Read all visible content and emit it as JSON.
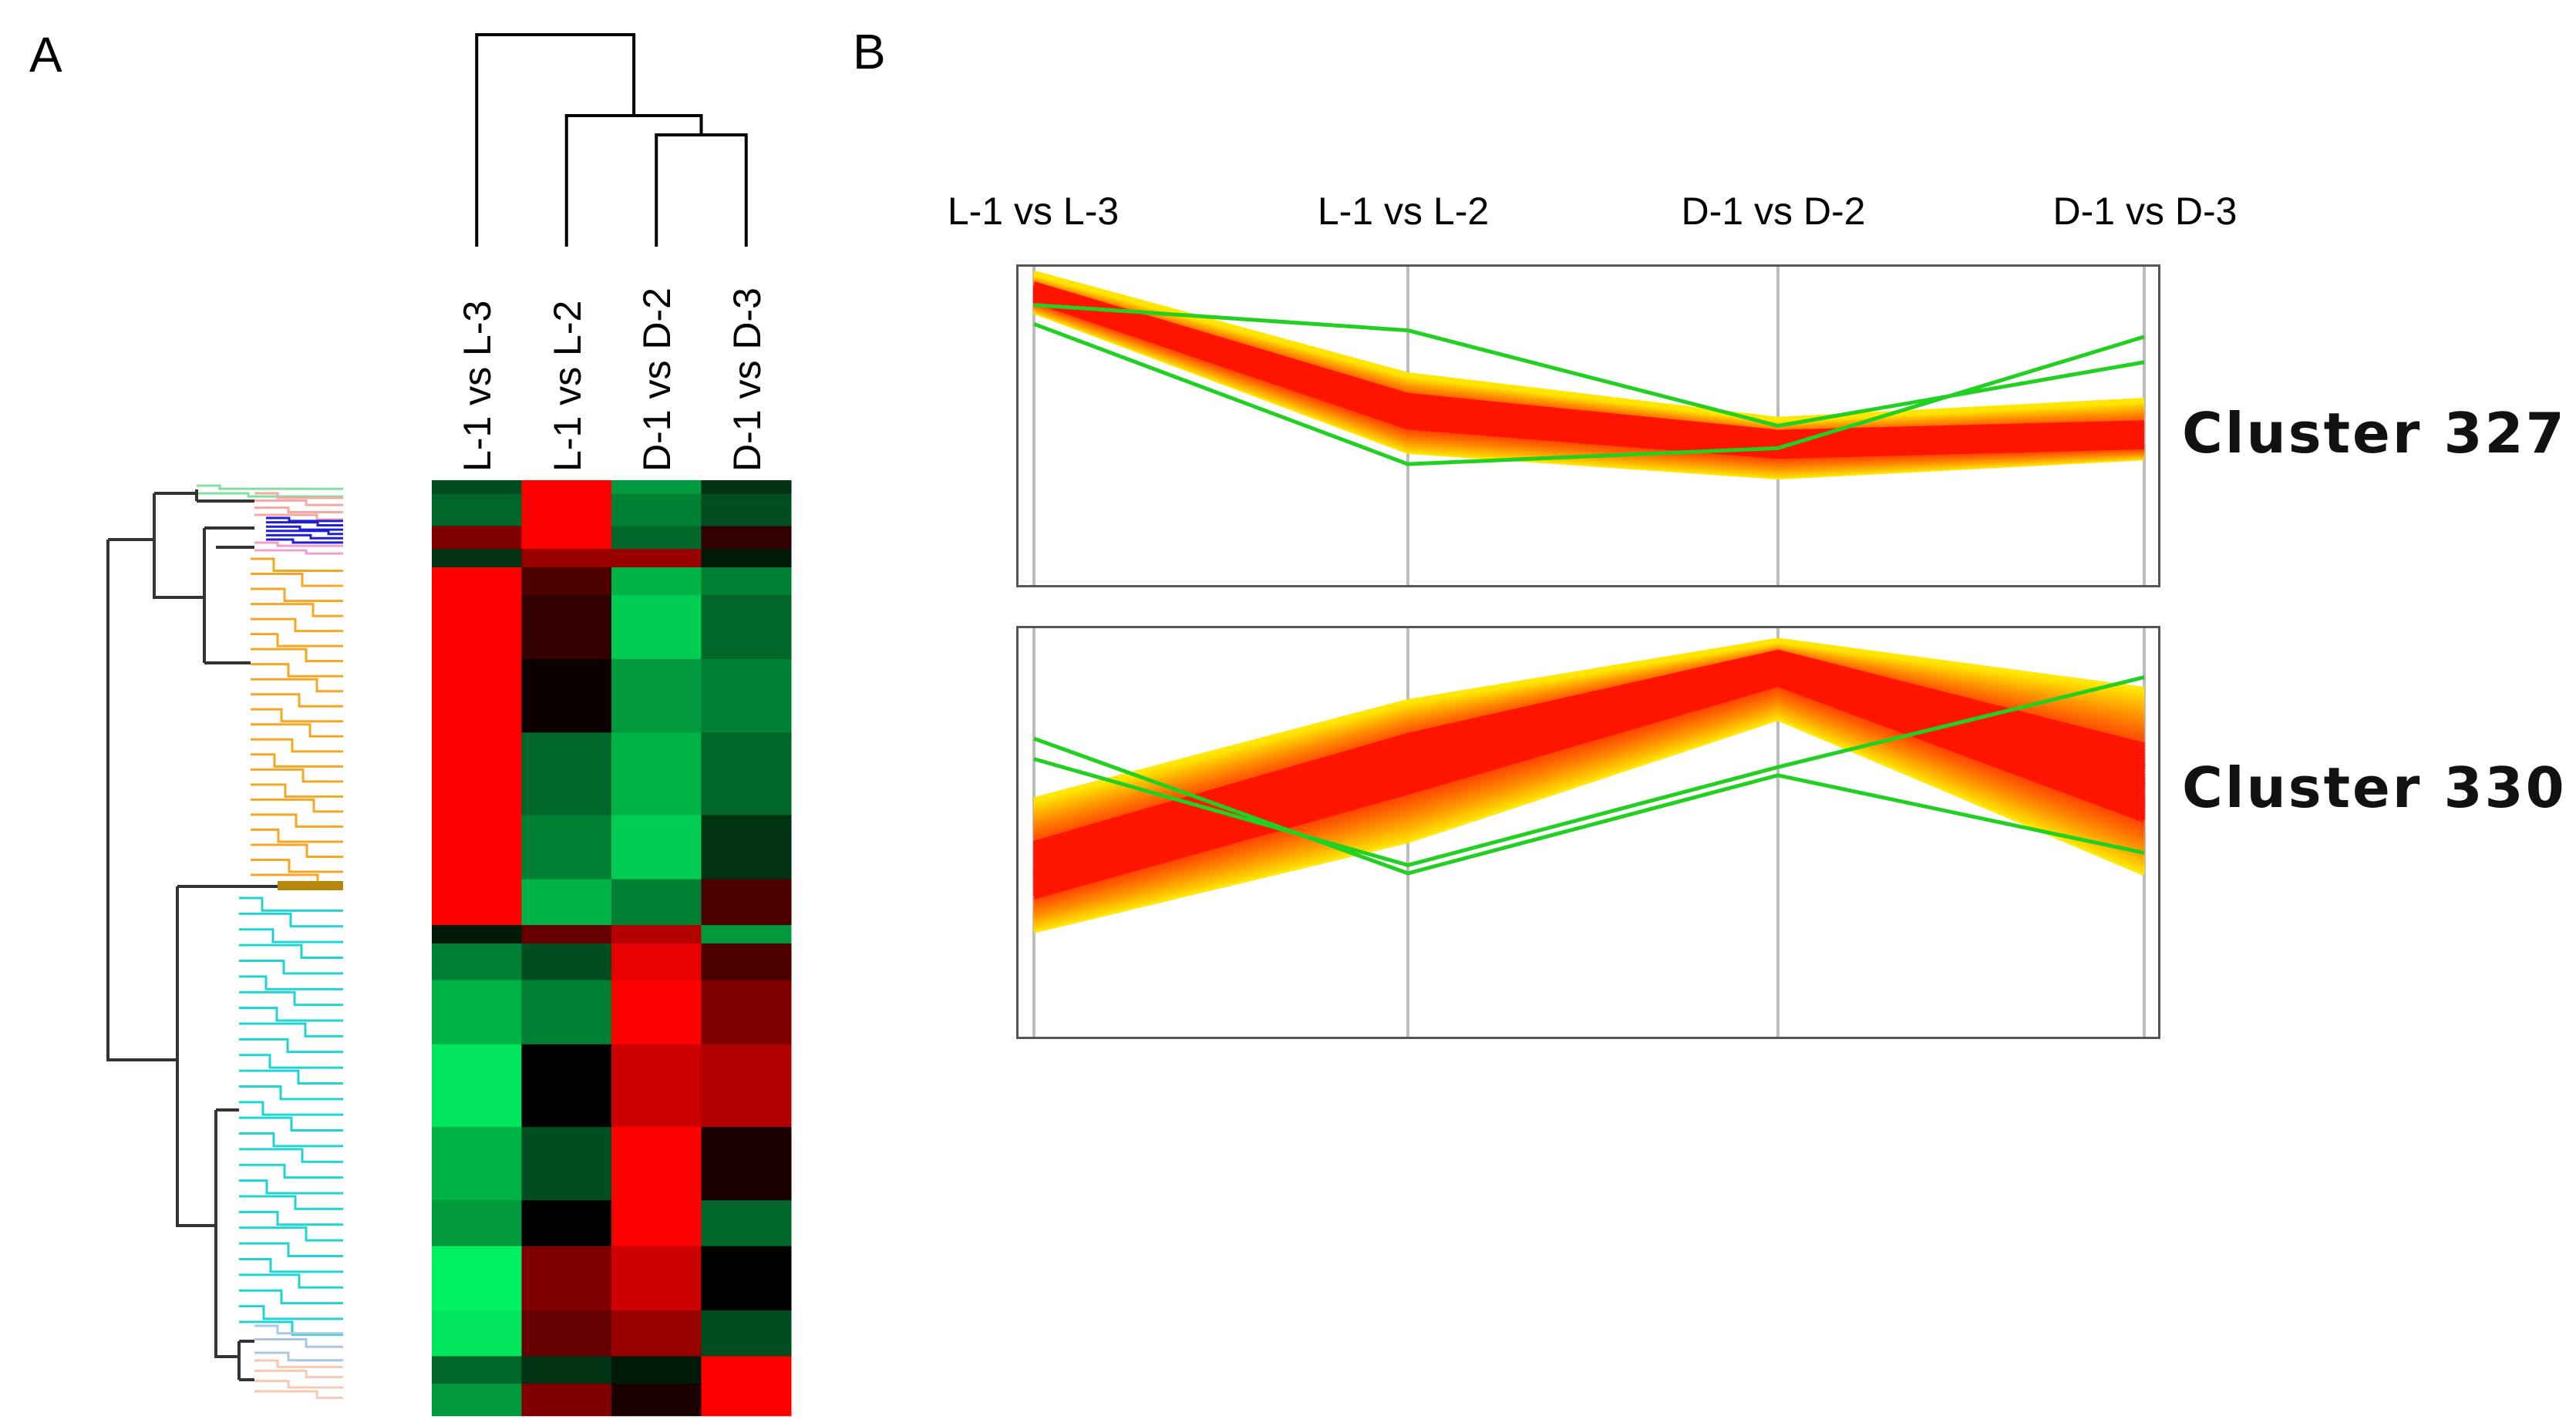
{
  "panels": {
    "a_label": "A",
    "b_label": "B"
  },
  "chart_data": [
    {
      "type": "heatmap",
      "title": "",
      "columns": [
        "L-1 vs L-3",
        "L-1 vs L-2",
        "D-1 vs D-2",
        "D-1 vs D-3"
      ],
      "column_dendrogram_order": [
        "L-1 vs L-3",
        "L-1 vs L-2",
        "D-1 vs D-2",
        "D-1 vs D-3"
      ],
      "color_scale": {
        "high": "#ff0000",
        "mid": "#000000",
        "low": "#00ff66"
      },
      "row_cluster_colors": [
        "#7fe0a0",
        "#f4a8a0",
        "#1f1fd6",
        "#f0a0d0",
        "#f5a623",
        "#b8860b",
        "#22d3d3",
        "#a9c8e0",
        "#f7c9b0"
      ],
      "row_blocks": [
        {
          "fraction": 0.015,
          "values": [
            -0.3,
            1.0,
            -0.6,
            -0.2
          ]
        },
        {
          "fraction": 0.035,
          "values": [
            -0.4,
            1.0,
            -0.5,
            -0.3
          ]
        },
        {
          "fraction": 0.025,
          "values": [
            0.5,
            1.0,
            -0.4,
            0.2
          ]
        },
        {
          "fraction": 0.02,
          "values": [
            -0.2,
            0.6,
            0.6,
            -0.1
          ]
        },
        {
          "fraction": 0.03,
          "values": [
            1.0,
            0.3,
            -0.7,
            -0.5
          ]
        },
        {
          "fraction": 0.07,
          "values": [
            1.0,
            0.2,
            -0.8,
            -0.4
          ]
        },
        {
          "fraction": 0.08,
          "values": [
            1.0,
            0.05,
            -0.6,
            -0.5
          ]
        },
        {
          "fraction": 0.09,
          "values": [
            1.0,
            -0.4,
            -0.7,
            -0.4
          ]
        },
        {
          "fraction": 0.07,
          "values": [
            1.0,
            -0.5,
            -0.8,
            -0.2
          ]
        },
        {
          "fraction": 0.05,
          "values": [
            1.0,
            -0.7,
            -0.5,
            0.3
          ]
        },
        {
          "fraction": 0.02,
          "values": [
            -0.1,
            0.4,
            0.7,
            -0.6
          ]
        },
        {
          "fraction": 0.04,
          "values": [
            -0.5,
            -0.3,
            0.9,
            0.3
          ]
        },
        {
          "fraction": 0.07,
          "values": [
            -0.7,
            -0.5,
            1.0,
            0.5
          ]
        },
        {
          "fraction": 0.09,
          "values": [
            -0.9,
            0.0,
            0.8,
            0.7
          ]
        },
        {
          "fraction": 0.08,
          "values": [
            -0.7,
            -0.3,
            1.0,
            0.1
          ]
        },
        {
          "fraction": 0.05,
          "values": [
            -0.6,
            0.0,
            1.0,
            -0.4
          ]
        },
        {
          "fraction": 0.07,
          "values": [
            -0.95,
            0.5,
            0.8,
            0.0
          ]
        },
        {
          "fraction": 0.05,
          "values": [
            -0.9,
            0.4,
            0.6,
            -0.3
          ]
        },
        {
          "fraction": 0.03,
          "values": [
            -0.4,
            -0.2,
            -0.1,
            1.0
          ]
        },
        {
          "fraction": 0.035,
          "values": [
            -0.6,
            0.5,
            0.1,
            1.0
          ]
        }
      ]
    },
    {
      "type": "line",
      "title": "Cluster 327",
      "x": [
        "L-1 vs L-3",
        "L-1 vs L-2",
        "D-1 vs D-2",
        "D-1 vs D-3"
      ],
      "ylim": [
        0,
        1
      ],
      "series": [
        {
          "name": "core-upper",
          "values": [
            0.98,
            0.66,
            0.52,
            0.58
          ]
        },
        {
          "name": "core-mid",
          "values": [
            0.92,
            0.55,
            0.45,
            0.46
          ]
        },
        {
          "name": "core-lower",
          "values": [
            0.86,
            0.42,
            0.34,
            0.4
          ]
        },
        {
          "name": "outlier-green-1",
          "values": [
            0.82,
            0.38,
            0.43,
            0.78
          ]
        },
        {
          "name": "outlier-green-2",
          "values": [
            0.88,
            0.8,
            0.5,
            0.7
          ]
        }
      ]
    },
    {
      "type": "line",
      "title": "Cluster 330",
      "x": [
        "L-1 vs L-3",
        "L-1 vs L-2",
        "D-1 vs D-2",
        "D-1 vs D-3"
      ],
      "ylim": [
        0,
        1
      ],
      "series": [
        {
          "name": "core-upper",
          "values": [
            0.58,
            0.82,
            0.97,
            0.85
          ]
        },
        {
          "name": "core-mid",
          "values": [
            0.4,
            0.68,
            0.92,
            0.62
          ]
        },
        {
          "name": "core-lower",
          "values": [
            0.26,
            0.48,
            0.78,
            0.4
          ]
        },
        {
          "name": "outlier-green-1",
          "values": [
            0.73,
            0.4,
            0.64,
            0.45
          ]
        },
        {
          "name": "outlier-green-2",
          "values": [
            0.68,
            0.42,
            0.66,
            0.88
          ]
        }
      ]
    }
  ]
}
